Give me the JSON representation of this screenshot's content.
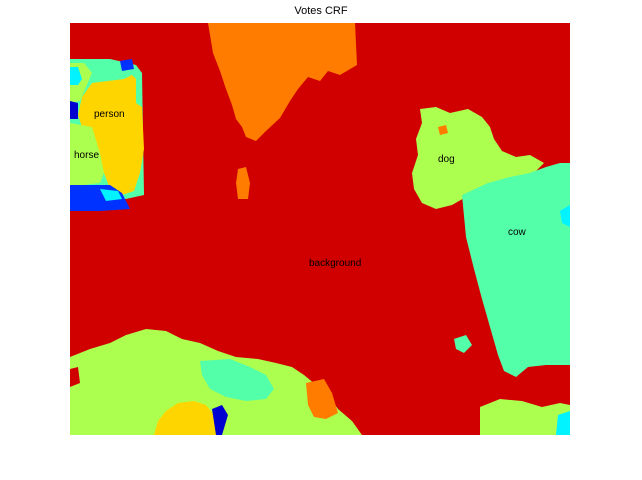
{
  "figure": {
    "title": "Votes CRF",
    "labels": {
      "person": "person",
      "horse": "horse",
      "dog": "dog",
      "cow": "cow",
      "background": "background"
    },
    "colors": {
      "background": "#d10000",
      "orange": "#ff7c00",
      "yellow": "#ffd500",
      "yellow_green": "#adff4f",
      "green_cyan": "#54ffaa",
      "cyan": "#00f3ff",
      "blue": "#0032ff",
      "dark_blue": "#0000d0"
    }
  }
}
